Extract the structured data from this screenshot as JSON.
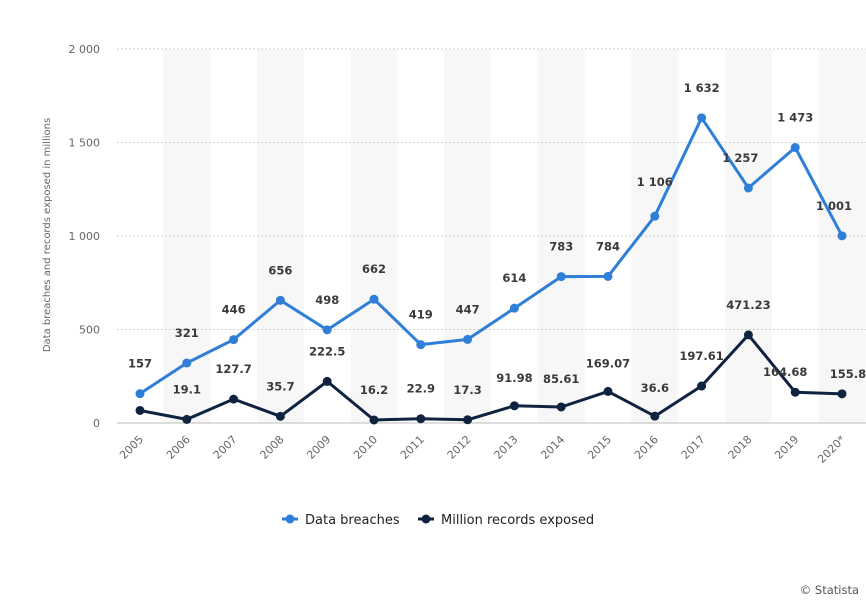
{
  "chart_data": {
    "type": "line",
    "categories": [
      "2005",
      "2006",
      "2007",
      "2008",
      "2009",
      "2010",
      "2011",
      "2012",
      "2013",
      "2014",
      "2015",
      "2016",
      "2017",
      "2018",
      "2019",
      "2020*"
    ],
    "series": [
      {
        "name": "Data breaches",
        "color": "#2f7ed8",
        "values": [
          157,
          321,
          446,
          656,
          498,
          662,
          419,
          447,
          614,
          783,
          784,
          1106,
          1632,
          1257,
          1473,
          1001
        ],
        "labels": [
          "157",
          "321",
          "446",
          "656",
          "498",
          "662",
          "419",
          "447",
          "614",
          "783",
          "784",
          "1 106",
          "1 632",
          "1 257",
          "1 473",
          "1 001"
        ]
      },
      {
        "name": "Million records exposed",
        "color": "#0f2340",
        "values": [
          66.9,
          19.1,
          127.7,
          35.7,
          222.5,
          16.2,
          22.9,
          17.3,
          91.98,
          85.61,
          169.07,
          36.6,
          197.61,
          471.23,
          164.68,
          155.8
        ],
        "labels": [
          "",
          "19.1",
          "127.7",
          "35.7",
          "222.5",
          "16.2",
          "22.9",
          "17.3",
          "91.98",
          "85.61",
          "169.07",
          "36.6",
          "197.61",
          "471.23",
          "164.68",
          "155.8"
        ]
      }
    ],
    "ylabel": "Data breaches and records exposed in millions",
    "ylim": [
      0,
      2000
    ],
    "yticks": [
      0,
      500,
      1000,
      1500,
      2000
    ],
    "ytick_labels": [
      "0",
      "500",
      "1 000",
      "1 500",
      "2 000"
    ],
    "grid": true,
    "legend": "bottom-center",
    "credit": "© Statista"
  }
}
